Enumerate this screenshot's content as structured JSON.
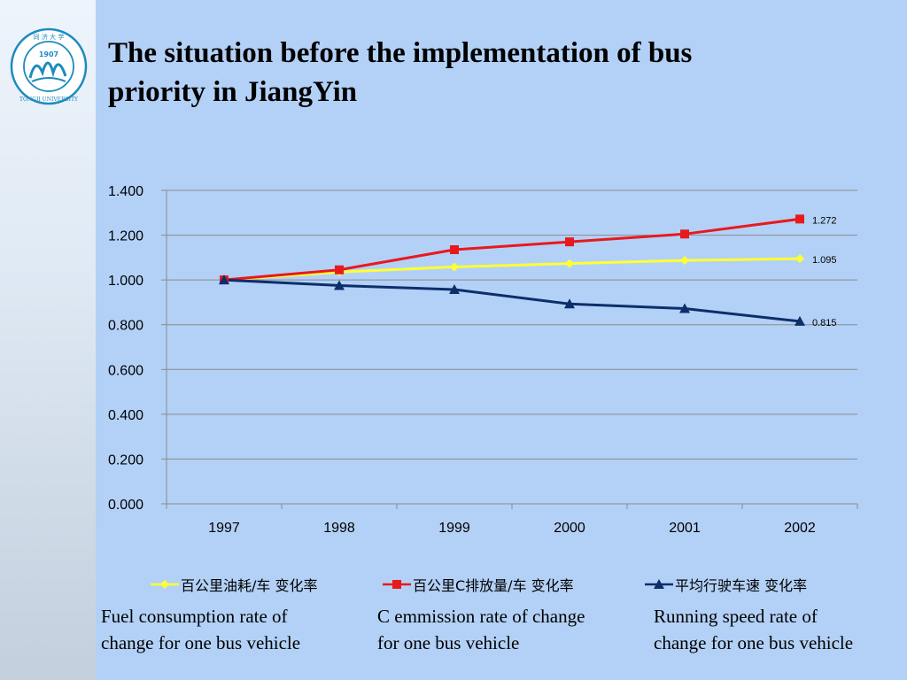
{
  "slide": {
    "title_line1": "The situation before the implementation of bus",
    "title_line2": "priority in JiangYin",
    "logo": {
      "text_top": "同 济 大 学",
      "year": "1907",
      "text_ring": "TONGJI UNIVERSITY"
    }
  },
  "legend": [
    {
      "label": "百公里油耗/车 变化率",
      "color": "#ffff33",
      "marker": "diamond"
    },
    {
      "label": "百公里C排放量/车 变化率",
      "color": "#e8191d",
      "marker": "square"
    },
    {
      "label": "平均行驶车速 变化率",
      "color": "#0d2e6b",
      "marker": "triangle"
    }
  ],
  "captions": [
    {
      "line1": "Fuel consumption rate of",
      "line2": "change  for one bus vehicle"
    },
    {
      "line1": "C emmission rate of change",
      "line2": "for one bus vehicle"
    },
    {
      "line1": "Running speed rate of",
      "line2": "change for one bus vehicle"
    }
  ],
  "chart_data": {
    "type": "line",
    "title": "",
    "xlabel": "",
    "ylabel": "",
    "categories": [
      "1997",
      "1998",
      "1999",
      "2000",
      "2001",
      "2002"
    ],
    "ylim": [
      0,
      1.4
    ],
    "yticks": [
      "0.000",
      "0.200",
      "0.400",
      "0.600",
      "0.800",
      "1.000",
      "1.200",
      "1.400"
    ],
    "grid": true,
    "legend_position": "bottom",
    "series": [
      {
        "name": "百公里油耗/车 变化率",
        "color": "#ffff33",
        "marker": "diamond",
        "values": [
          1.0,
          1.035,
          1.058,
          1.073,
          1.087,
          1.095
        ],
        "end_label": "1.095"
      },
      {
        "name": "百公里C排放量/车 变化率",
        "color": "#e8191d",
        "marker": "square",
        "values": [
          1.0,
          1.045,
          1.135,
          1.17,
          1.205,
          1.272
        ],
        "end_label": "1.272"
      },
      {
        "name": "平均行驶车速 变化率",
        "color": "#0d2e6b",
        "marker": "triangle",
        "values": [
          1.0,
          0.975,
          0.957,
          0.893,
          0.872,
          0.815
        ],
        "end_label": "0.815"
      }
    ]
  }
}
